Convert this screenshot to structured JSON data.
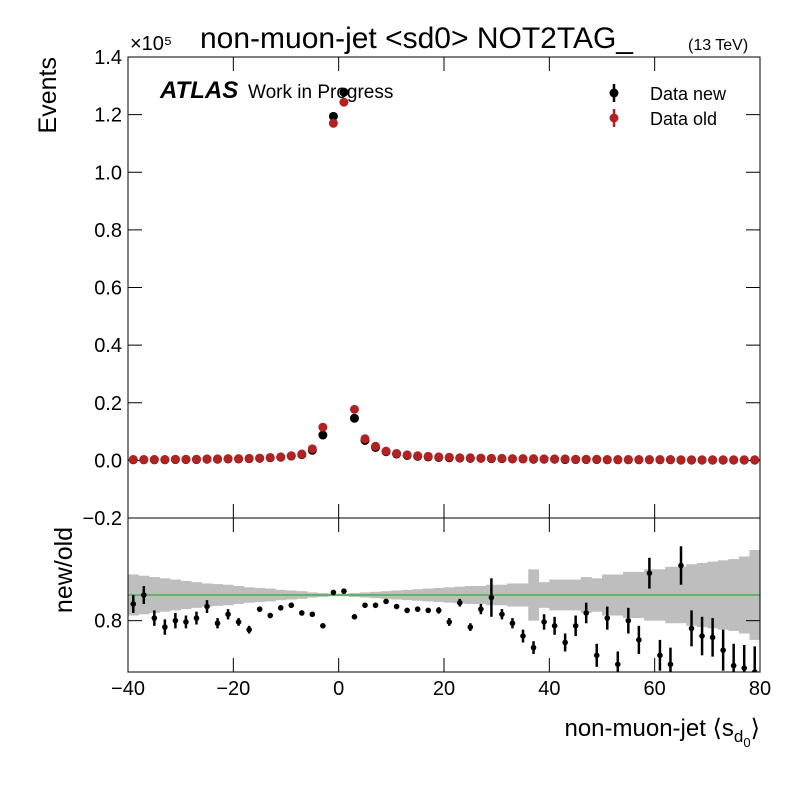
{
  "chart_data": [
    {
      "type": "scatter",
      "title": "non-muon-jet <sd0> NOT2TAG_",
      "title_suffix": "(13 TeV)",
      "y_offset_label": "×10⁵",
      "atlas_label": "ATLAS",
      "atlas_sublabel": "Work in Progress",
      "ylabel": "Events",
      "legend": "upper right",
      "x": [
        -39,
        -37,
        -35,
        -33,
        -31,
        -29,
        -27,
        -25,
        -23,
        -21,
        -19,
        -17,
        -15,
        -13,
        -11,
        -9,
        -7,
        -5,
        -3,
        -1,
        1,
        3,
        5,
        7,
        9,
        11,
        13,
        15,
        17,
        19,
        21,
        23,
        25,
        27,
        29,
        31,
        33,
        35,
        37,
        39,
        41,
        43,
        45,
        47,
        49,
        51,
        53,
        55,
        57,
        59,
        61,
        63,
        65,
        67,
        69,
        71,
        73,
        75,
        77,
        79
      ],
      "xlim": [
        -40,
        80
      ],
      "ylim": [
        -0.2,
        1.4
      ],
      "yticks": [
        {
          "value": -0.2,
          "label": "−0.2"
        },
        {
          "value": 0,
          "label": "0.0"
        },
        0.2,
        0.4,
        0.6,
        0.8,
        {
          "value": 1,
          "label": "1.0"
        },
        1.2,
        1.4
      ],
      "series": [
        {
          "name": "Data new",
          "color": "#000000",
          "values": [
            0.002,
            0.002,
            0.002,
            0.002,
            0.003,
            0.003,
            0.003,
            0.004,
            0.004,
            0.005,
            0.005,
            0.006,
            0.007,
            0.009,
            0.011,
            0.015,
            0.02,
            0.035,
            0.088,
            1.194,
            1.278,
            0.146,
            0.069,
            0.045,
            0.03,
            0.022,
            0.017,
            0.014,
            0.012,
            0.01,
            0.009,
            0.008,
            0.007,
            0.007,
            0.006,
            0.006,
            0.005,
            0.005,
            0.004,
            0.004,
            0.004,
            0.003,
            0.003,
            0.003,
            0.003,
            0.002,
            0.002,
            0.002,
            0.002,
            0.002,
            0.002,
            0.002,
            0.001,
            0.001,
            0.001,
            0.001,
            0.001,
            0.001,
            0.001,
            0.001
          ]
        },
        {
          "name": "Data old",
          "color": "#b22222",
          "values": [
            0.003,
            0.003,
            0.003,
            0.003,
            0.004,
            0.004,
            0.004,
            0.005,
            0.005,
            0.006,
            0.006,
            0.007,
            0.008,
            0.01,
            0.012,
            0.016,
            0.022,
            0.04,
            0.115,
            1.17,
            1.243,
            0.177,
            0.075,
            0.049,
            0.032,
            0.024,
            0.019,
            0.016,
            0.014,
            0.012,
            0.011,
            0.009,
            0.009,
            0.008,
            0.007,
            0.007,
            0.006,
            0.006,
            0.006,
            0.005,
            0.005,
            0.005,
            0.004,
            0.004,
            0.004,
            0.003,
            0.003,
            0.003,
            0.003,
            0.003,
            0.003,
            0.003,
            0.002,
            0.002,
            0.002,
            0.002,
            0.002,
            0.002,
            0.002,
            0.002
          ]
        }
      ]
    },
    {
      "type": "errorbar",
      "ylabel": "new/old",
      "x_label": "non-muon-jet ⟨s",
      "x_label_sub": "d",
      "x_label_subsub": "0",
      "x_label_end": "⟩",
      "color": "#000000",
      "band_color": "#bebebe",
      "reference": 1,
      "reference_color": "#33aa33",
      "x": [
        -39,
        -37,
        -35,
        -33,
        -31,
        -29,
        -27,
        -25,
        -23,
        -21,
        -19,
        -17,
        -15,
        -13,
        -11,
        -9,
        -7,
        -5,
        -3,
        -1,
        1,
        3,
        5,
        7,
        9,
        11,
        13,
        15,
        17,
        19,
        21,
        23,
        25,
        27,
        29,
        31,
        33,
        35,
        37,
        39,
        41,
        43,
        45,
        47,
        49,
        51,
        53,
        55,
        57,
        59,
        61,
        63,
        65,
        67,
        69,
        71,
        73,
        75,
        77,
        79
      ],
      "values": [
        0.93,
        1.0,
        0.82,
        0.75,
        0.8,
        0.79,
        0.82,
        0.91,
        0.78,
        0.85,
        0.79,
        0.73,
        0.89,
        0.84,
        0.9,
        0.92,
        0.86,
        0.85,
        0.76,
        1.02,
        1.03,
        0.83,
        0.92,
        0.92,
        0.95,
        0.91,
        0.88,
        0.89,
        0.88,
        0.88,
        0.79,
        0.94,
        0.75,
        0.89,
        0.98,
        0.85,
        0.78,
        0.68,
        0.59,
        0.79,
        0.76,
        0.63,
        0.76,
        0.86,
        0.53,
        0.82,
        0.46,
        0.8,
        0.65,
        1.17,
        0.53,
        0.46,
        1.23,
        0.74,
        0.68,
        0.67,
        0.57,
        0.45,
        0.43,
        0.4
      ],
      "errors": [
        0.07,
        0.07,
        0.06,
        0.06,
        0.06,
        0.05,
        0.05,
        0.05,
        0.04,
        0.04,
        0.03,
        0.03,
        0.02,
        0.02,
        0.02,
        0.02,
        0.01,
        0.01,
        0.01,
        0.005,
        0.005,
        0.01,
        0.01,
        0.01,
        0.01,
        0.015,
        0.02,
        0.02,
        0.02,
        0.025,
        0.03,
        0.03,
        0.03,
        0.04,
        0.15,
        0.04,
        0.04,
        0.05,
        0.05,
        0.06,
        0.07,
        0.07,
        0.08,
        0.08,
        0.09,
        0.09,
        0.1,
        0.1,
        0.11,
        0.12,
        0.12,
        0.13,
        0.15,
        0.14,
        0.15,
        0.15,
        0.16,
        0.17,
        0.18,
        0.2
      ],
      "band": [
        0.16,
        0.15,
        0.14,
        0.13,
        0.12,
        0.11,
        0.1,
        0.09,
        0.085,
        0.08,
        0.07,
        0.06,
        0.055,
        0.05,
        0.04,
        0.035,
        0.03,
        0.02,
        0.015,
        0.01,
        0.01,
        0.015,
        0.02,
        0.025,
        0.03,
        0.035,
        0.04,
        0.045,
        0.05,
        0.055,
        0.06,
        0.065,
        0.07,
        0.07,
        0.08,
        0.08,
        0.09,
        0.09,
        0.2,
        0.1,
        0.12,
        0.12,
        0.12,
        0.14,
        0.13,
        0.16,
        0.16,
        0.18,
        0.18,
        0.2,
        0.2,
        0.22,
        0.22,
        0.24,
        0.25,
        0.26,
        0.27,
        0.28,
        0.3,
        0.35
      ],
      "xlim": [
        -40,
        80
      ],
      "xticks": [
        {
          "value": -40,
          "label": "−40"
        },
        {
          "value": -20,
          "label": "−20"
        },
        0,
        20,
        40,
        60,
        80
      ],
      "ylim": [
        0.4,
        1.6
      ],
      "yticks": [
        0.8
      ]
    }
  ]
}
